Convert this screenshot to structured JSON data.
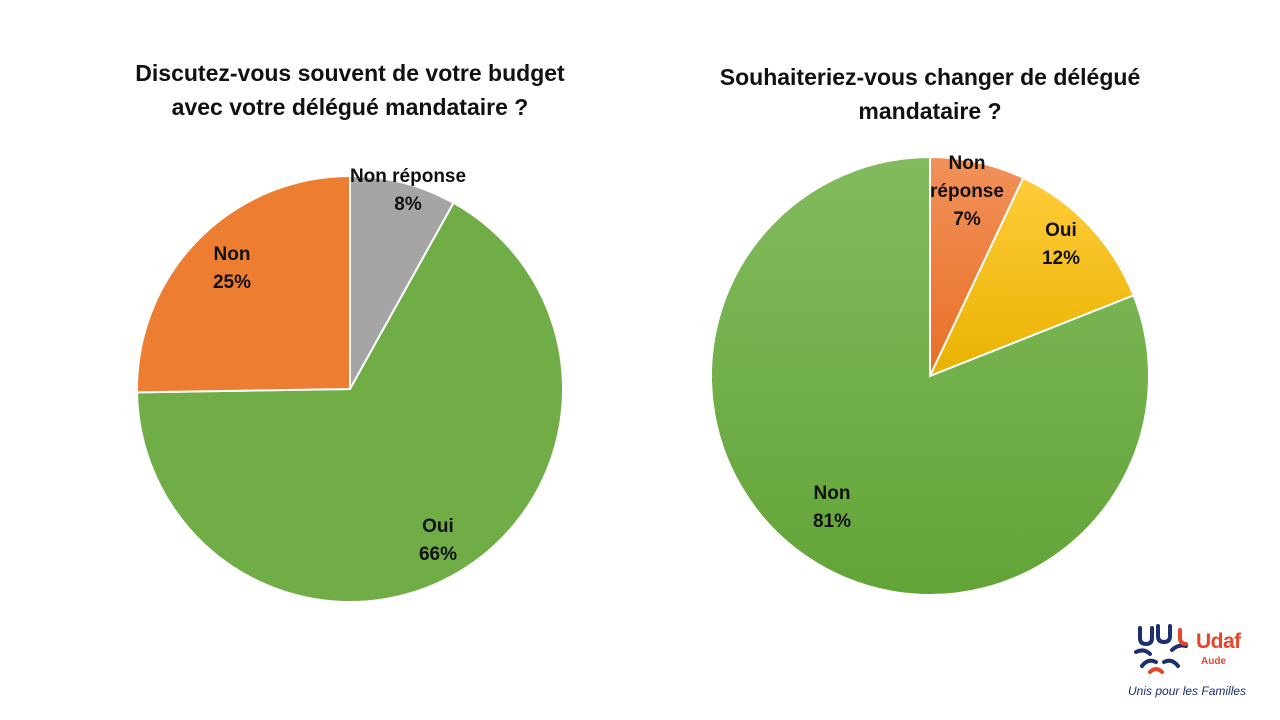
{
  "chart_data": [
    {
      "type": "pie",
      "title": "Discutez-vous souvent de votre budget avec votre délégué mandataire ?",
      "title_lines": [
        "Discutez-vous souvent de votre budget",
        "avec votre délégué mandataire ?"
      ],
      "slices": [
        {
          "label": "Non réponse",
          "label_lines": [
            "Non réponse"
          ],
          "value": 8,
          "value_label": "8%",
          "color": "#a5a5a5"
        },
        {
          "label": "Oui",
          "label_lines": [
            "Oui"
          ],
          "value": 66,
          "value_label": "66%",
          "color": "#70ad47"
        },
        {
          "label": "Non",
          "label_lines": [
            "Non"
          ],
          "value": 25,
          "value_label": "25%",
          "color": "#ed7d31"
        }
      ]
    },
    {
      "type": "pie",
      "title": "Souhaiteriez-vous changer de délégué mandataire ?",
      "title_lines": [
        "Souhaiteriez-vous changer de délégué",
        "mandataire ?"
      ],
      "slices": [
        {
          "label": "Non réponse",
          "label_lines": [
            "Non",
            "réponse"
          ],
          "value": 7,
          "value_label": "7%",
          "color": "#ed7d31"
        },
        {
          "label": "Oui",
          "label_lines": [
            "Oui"
          ],
          "value": 12,
          "value_label": "12%",
          "color": "#ffc000"
        },
        {
          "label": "Non",
          "label_lines": [
            "Non"
          ],
          "value": 81,
          "value_label": "81%",
          "color": "#70ad47"
        }
      ]
    }
  ],
  "logo": {
    "brand": "Udaf",
    "sub": "Aude",
    "tagline": "Unis pour les Familles",
    "colors": {
      "brand": "#e8442a",
      "mark": "#1d2f6f"
    }
  }
}
